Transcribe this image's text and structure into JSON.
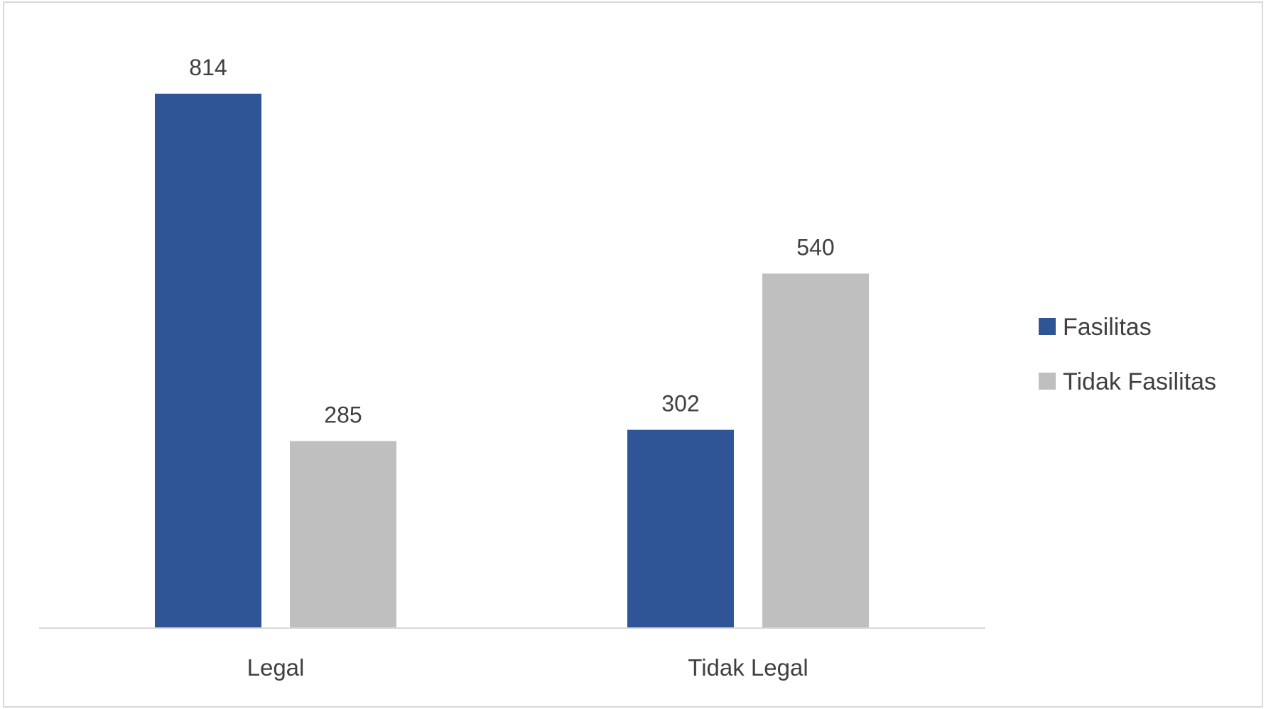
{
  "chart_data": {
    "type": "bar",
    "categories": [
      "Legal",
      "Tidak Legal"
    ],
    "series": [
      {
        "name": "Fasilitas",
        "values": [
          814,
          302
        ],
        "color": "#2F5597"
      },
      {
        "name": "Tidak Fasilitas",
        "values": [
          285,
          540
        ],
        "color": "#BFBFBF"
      }
    ],
    "title": "",
    "xlabel": "",
    "ylabel": "",
    "ylim": [
      0,
      814
    ],
    "grid": false,
    "legend": "right",
    "data_labels": true
  }
}
